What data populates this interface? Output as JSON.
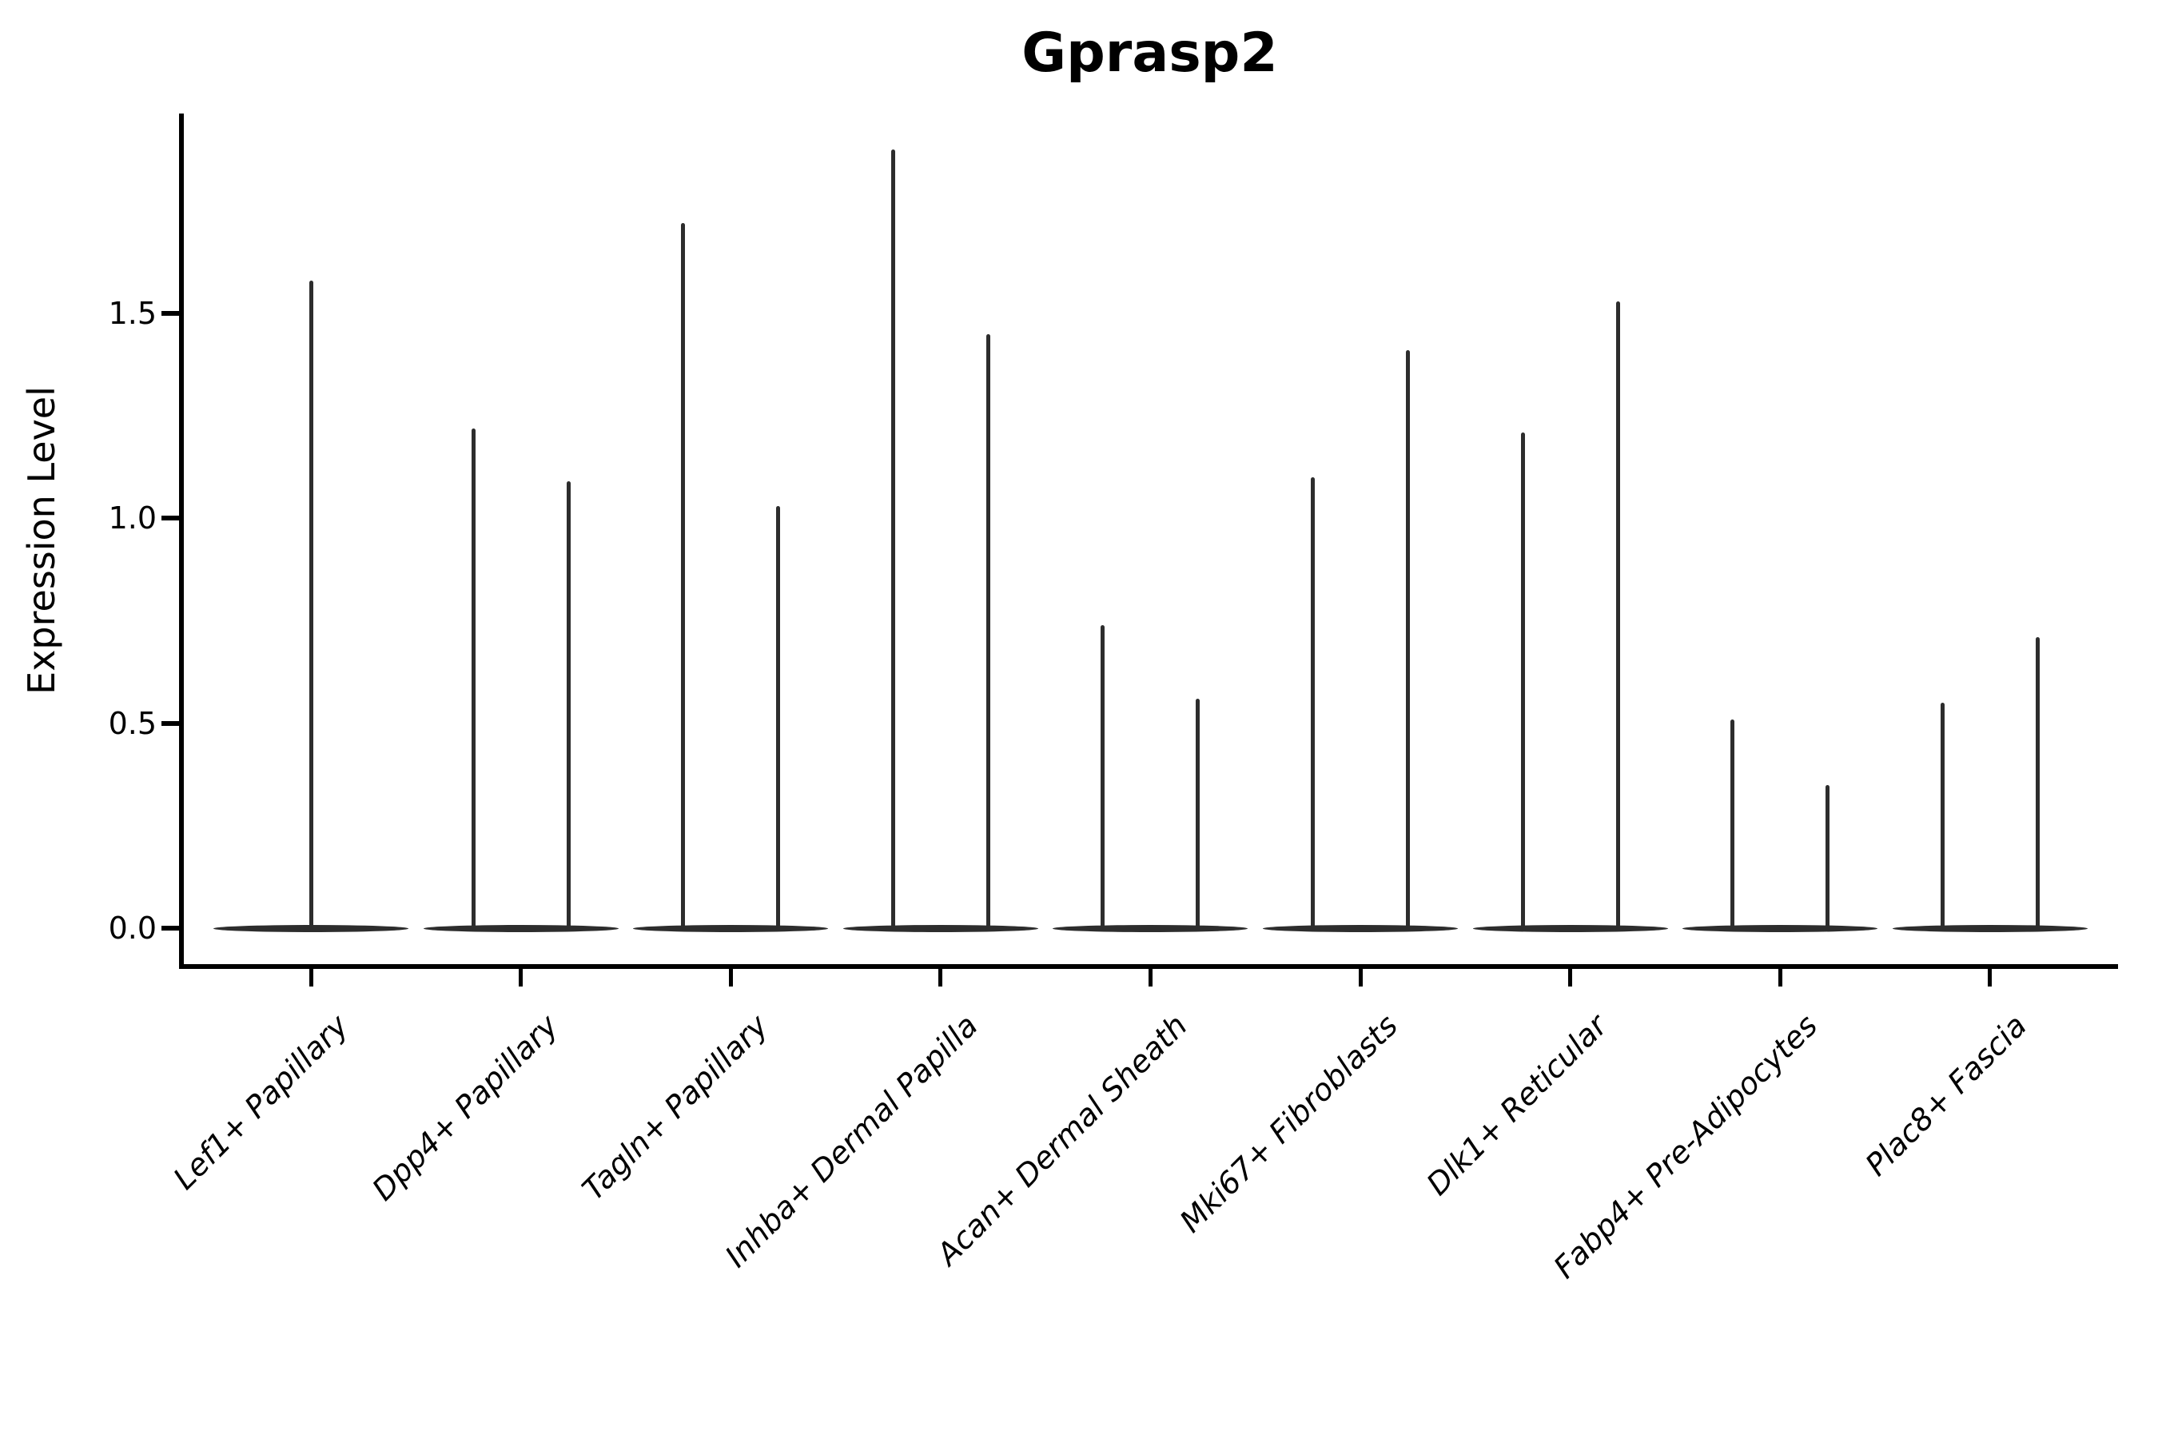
{
  "title": "Gprasp2",
  "axes": {
    "ylabel": "Expression Level",
    "ytick_labels": [
      "0.0",
      "0.5",
      "1.0",
      "1.5"
    ]
  },
  "colors": {
    "violin_line": "#2d2d2d",
    "spine": "#000000",
    "text": "#000000",
    "background": "#ffffff"
  },
  "chart_data": {
    "type": "violin",
    "title": "Gprasp2",
    "xlabel": "",
    "ylabel": "Expression Level",
    "grid": false,
    "legend": null,
    "yticks": [
      0.0,
      0.5,
      1.0,
      1.5
    ],
    "ylim": [
      -0.09,
      1.99
    ],
    "baseline_value": 0.0,
    "categories": [
      "Lef1+ Papillary",
      "Dpp4+ Papillary",
      "Tagln+ Papillary",
      "Inhba+ Dermal Papilla",
      "Acan+ Dermal Sheath",
      "Mki67+ Fibroblasts",
      "Dlk1+ Reticular",
      "Fabp4+ Pre-Adipocytes",
      "Plac8+ Fascia"
    ],
    "series": [
      {
        "category": "Lef1+ Papillary",
        "spike_maxima": [
          1.58
        ]
      },
      {
        "category": "Dpp4+ Papillary",
        "spike_maxima": [
          1.22,
          1.09
        ]
      },
      {
        "category": "Tagln+ Papillary",
        "spike_maxima": [
          1.72,
          1.03
        ]
      },
      {
        "category": "Inhba+ Dermal Papilla",
        "spike_maxima": [
          1.9,
          1.45
        ]
      },
      {
        "category": "Acan+ Dermal Sheath",
        "spike_maxima": [
          0.74,
          0.56
        ]
      },
      {
        "category": "Mki67+ Fibroblasts",
        "spike_maxima": [
          1.1,
          1.41
        ]
      },
      {
        "category": "Dlk1+ Reticular",
        "spike_maxima": [
          1.21,
          1.53
        ]
      },
      {
        "category": "Fabp4+ Pre-Adipocytes",
        "spike_maxima": [
          0.51,
          0.35
        ]
      },
      {
        "category": "Plac8+ Fascia",
        "spike_maxima": [
          0.55,
          0.71
        ]
      }
    ],
    "description": "Violin plot of Gprasp2 expression per fibroblast subtype; each violin collapses to a flat bar at 0 with thin spikes reaching the listed maximum expression values."
  }
}
